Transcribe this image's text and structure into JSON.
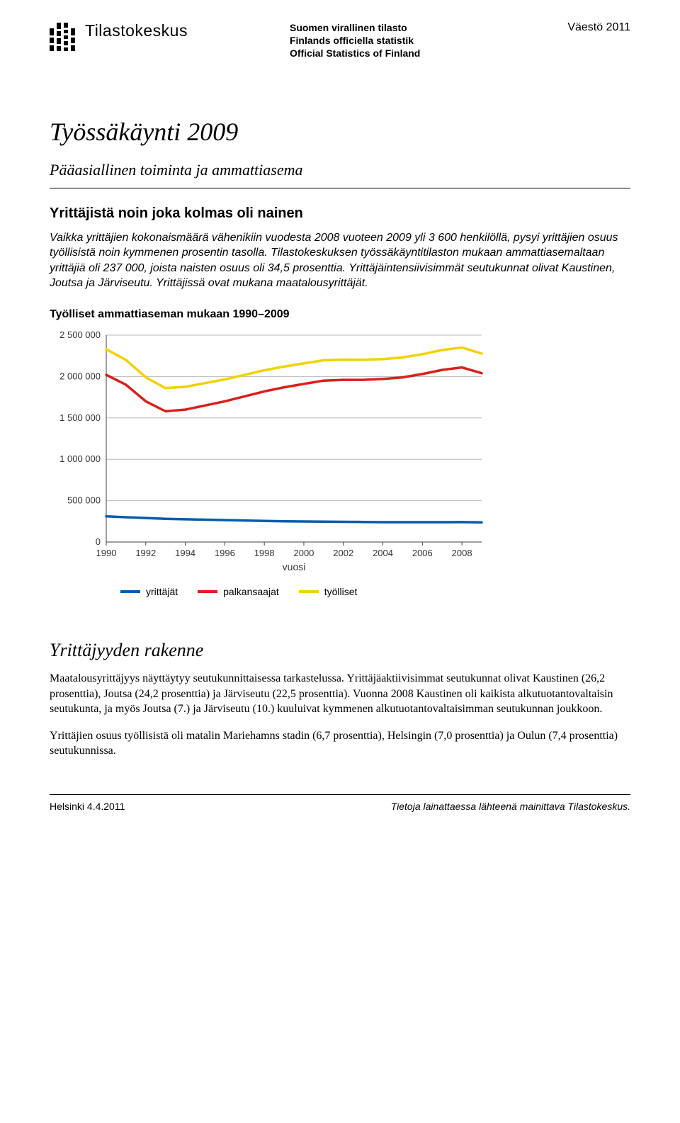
{
  "header": {
    "logo_text": "Tilastokeskus",
    "official_lines": [
      "Suomen virallinen tilasto",
      "Finlands officiella statistik",
      "Official Statistics of Finland"
    ],
    "category": "Väestö 2011"
  },
  "title": "Työssäkäynti 2009",
  "subtitle": "Pääasiallinen toiminta ja ammattiasema",
  "section_heading": "Yrittäjistä noin joka kolmas oli nainen",
  "intro_paragraph": "Vaikka yrittäjien kokonaismäärä vähenikiin vuodesta 2008 vuoteen 2009 yli 3 600 henkilöllä, pysyi yrittäjien osuus työllisistä noin kymmenen prosentin tasolla. Tilastokeskuksen työssäkäyntitilaston mukaan ammattiasemaltaan yrittäjiä oli 237 000, joista naisten osuus oli 34,5 prosenttia. Yrittäjäintensiivisimmät seutukunnat olivat Kaustinen, Joutsa ja Järviseutu. Yrittäjissä ovat mukana maatalousyrittäjät.",
  "chart": {
    "type": "line",
    "title": "Työlliset ammattiaseman mukaan 1990–2009",
    "x_values": [
      1990,
      1991,
      1992,
      1993,
      1994,
      1995,
      1996,
      1997,
      1998,
      1999,
      2000,
      2001,
      2002,
      2003,
      2004,
      2005,
      2006,
      2007,
      2008,
      2009
    ],
    "x_ticks": [
      1990,
      1992,
      1994,
      1996,
      1998,
      2000,
      2002,
      2004,
      2006,
      2008
    ],
    "x_label": "vuosi",
    "ylim": [
      0,
      2500000
    ],
    "y_ticks": [
      0,
      500000,
      1000000,
      1500000,
      2000000,
      2500000
    ],
    "y_tick_labels": [
      "0",
      "500 000",
      "1 000 000",
      "1 500 000",
      "2 000 000",
      "2 500 000"
    ],
    "series": [
      {
        "name": "yrittäjät",
        "color": "#065cab",
        "values": [
          310000,
          300000,
          290000,
          280000,
          275000,
          270000,
          265000,
          260000,
          255000,
          250000,
          248000,
          246000,
          244000,
          242000,
          240000,
          240000,
          240000,
          240000,
          240600,
          237000
        ]
      },
      {
        "name": "palkansaajat",
        "color": "#d8201d",
        "values": [
          2020000,
          1900000,
          1700000,
          1580000,
          1600000,
          1650000,
          1700000,
          1760000,
          1820000,
          1870000,
          1910000,
          1950000,
          1960000,
          1960000,
          1970000,
          1990000,
          2030000,
          2080000,
          2110000,
          2040000
        ]
      },
      {
        "name": "työlliset",
        "color": "#f0d200",
        "values": [
          2330000,
          2200000,
          1990000,
          1860000,
          1875000,
          1920000,
          1965000,
          2020000,
          2075000,
          2120000,
          2158000,
          2196000,
          2204000,
          2202000,
          2210000,
          2230000,
          2270000,
          2320000,
          2350000,
          2277000
        ]
      }
    ],
    "background_color": "#ffffff",
    "grid_color": "#b9b9b9",
    "axis_color": "#404040",
    "tick_fontsize": 13
  },
  "subsection_heading": "Yrittäjyyden rakenne",
  "body_paragraphs": [
    "Maatalousyrittäjyys näyttäytyy seutukunnittaisessa tarkastelussa. Yrittäjäaktiivisimmat seutukunnat olivat Kaustinen (26,2 prosenttia), Joutsa (24,2 prosenttia) ja Järviseutu (22,5 prosenttia). Vuonna 2008 Kaustinen oli kaikista alkutuotantovaltaisin seutukunta, ja myös Joutsa (7.) ja Järviseutu (10.) kuuluivat kymmenen alkutuotantovaltaisimman seutukunnan joukkoon.",
    "Yrittäjien osuus työllisistä oli matalin Mariehamns stadin (6,7 prosenttia), Helsingin (7,0 prosenttia) ja Oulun (7,4 prosenttia) seutukunnissa."
  ],
  "footer": {
    "left": "Helsinki 4.4.2011",
    "right": "Tietoja lainattaessa lähteenä mainittava Tilastokeskus."
  }
}
